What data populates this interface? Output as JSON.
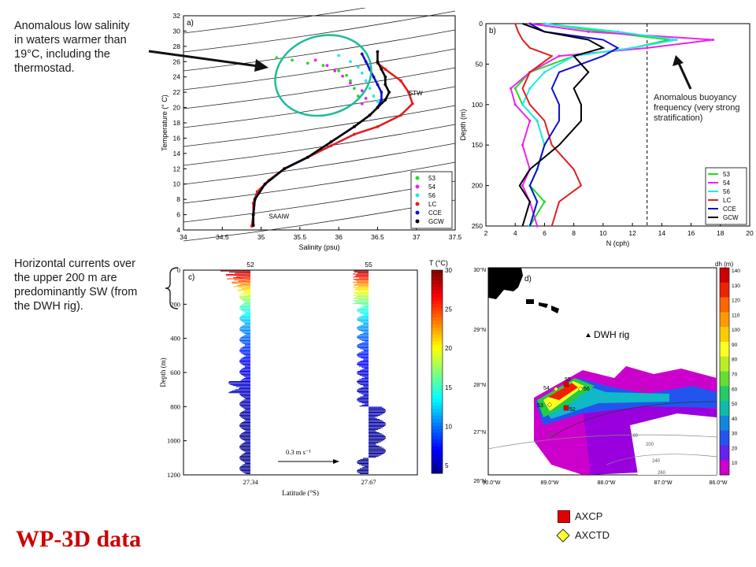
{
  "annotations": {
    "low_salinity": "Anomalous low salinity in waters warmer than 19°C, including the thermostad.",
    "buoyancy": "Anomalous buoyancy frequency (very strong stratification)",
    "currents": "Horizontal currents over the upper 200 m are predominantly SW (from the DWH rig).",
    "footer_title": "WP-3D data"
  },
  "legend_bottom": {
    "axcp": "AXCP",
    "axctd": "AXCTD",
    "axcp_color": "#e00000",
    "axctd_color": "#ffff33"
  },
  "series_colors": {
    "53": "#22dd22",
    "54": "#ee22ee",
    "56": "#22e8e8",
    "LC": "#e02020",
    "CCE": "#1010cc",
    "GCW": "#000000"
  },
  "chart_data": [
    {
      "type": "scatter",
      "panel": "a)",
      "xlabel": "Salinity (psu)",
      "ylabel": "Temperature (° C)",
      "xlim": [
        34,
        37.5
      ],
      "ylim": [
        4,
        32
      ],
      "xticks": [
        "34",
        "34.5",
        "35",
        "35.5",
        "36",
        "36.5",
        "37",
        "37.5"
      ],
      "yticks": [
        "4",
        "6",
        "8",
        "10",
        "12",
        "14",
        "16",
        "18",
        "20",
        "22",
        "24",
        "26",
        "28",
        "30",
        "32"
      ],
      "water_mass_labels": [
        "STW",
        "SAAIW"
      ],
      "legend": [
        "53",
        "54",
        "56",
        "LC",
        "CCE",
        "GCW"
      ],
      "series": [
        {
          "name": "53",
          "points": [
            [
              35.2,
              26.5
            ],
            [
              35.4,
              26.2
            ],
            [
              35.6,
              25.8
            ],
            [
              35.8,
              25.5
            ],
            [
              36.0,
              24.8
            ],
            [
              36.1,
              24.2
            ],
            [
              36.15,
              23.5
            ],
            [
              36.2,
              22.5
            ],
            [
              36.25,
              21.5
            ]
          ]
        },
        {
          "name": "54",
          "points": [
            [
              35.7,
              26.2
            ],
            [
              35.85,
              25.5
            ],
            [
              35.95,
              24.8
            ],
            [
              36.05,
              24.1
            ],
            [
              36.15,
              23.2
            ],
            [
              36.3,
              22.2
            ],
            [
              36.35,
              21.2
            ],
            [
              36.3,
              20.5
            ]
          ]
        },
        {
          "name": "56",
          "points": [
            [
              36.0,
              26.8
            ],
            [
              36.15,
              26
            ],
            [
              36.25,
              25.3
            ],
            [
              36.3,
              24.5
            ],
            [
              36.35,
              23.5
            ],
            [
              36.4,
              22.5
            ],
            [
              36.45,
              21.5
            ],
            [
              36.5,
              20.8
            ]
          ]
        },
        {
          "name": "LC",
          "points": [
            [
              36.5,
              25.8
            ],
            [
              36.6,
              25
            ],
            [
              36.8,
              23.5
            ],
            [
              36.9,
              22
            ],
            [
              36.95,
              20.5
            ],
            [
              36.8,
              19
            ],
            [
              36.5,
              17.5
            ],
            [
              36.2,
              16.5
            ],
            [
              35.9,
              15
            ],
            [
              35.6,
              13.5
            ],
            [
              35.3,
              12
            ],
            [
              35.1,
              10.5
            ],
            [
              34.95,
              9
            ],
            [
              34.9,
              7.5
            ],
            [
              34.9,
              6
            ],
            [
              34.88,
              4.5
            ]
          ]
        },
        {
          "name": "CCE",
          "points": [
            [
              36.3,
              27
            ],
            [
              36.35,
              26
            ],
            [
              36.4,
              25
            ],
            [
              36.45,
              24
            ],
            [
              36.5,
              23
            ],
            [
              36.55,
              22
            ],
            [
              36.55,
              21
            ],
            [
              36.5,
              20
            ],
            [
              36.4,
              19
            ],
            [
              36.2,
              17.5
            ],
            [
              35.9,
              15.5
            ],
            [
              35.6,
              13.5
            ],
            [
              35.3,
              12
            ],
            [
              35.05,
              10
            ],
            [
              34.92,
              8
            ],
            [
              34.9,
              6
            ],
            [
              34.9,
              4.6
            ]
          ]
        },
        {
          "name": "GCW",
          "points": [
            [
              36.5,
              27.3
            ],
            [
              36.5,
              26
            ],
            [
              36.55,
              25
            ],
            [
              36.6,
              24
            ],
            [
              36.6,
              23
            ],
            [
              36.65,
              22
            ],
            [
              36.6,
              21
            ],
            [
              36.5,
              20
            ],
            [
              36.4,
              19
            ],
            [
              36.2,
              17.5
            ],
            [
              35.9,
              15.5
            ],
            [
              35.6,
              13.5
            ],
            [
              35.3,
              12
            ],
            [
              35.05,
              10
            ],
            [
              34.92,
              8
            ],
            [
              34.9,
              6
            ],
            [
              34.9,
              4.6
            ]
          ]
        }
      ]
    },
    {
      "type": "line",
      "panel": "b)",
      "xlabel": "N (cph)",
      "ylabel": "Depth (m)",
      "xlim": [
        2,
        20
      ],
      "ylim": [
        250,
        0
      ],
      "xticks": [
        "2",
        "4",
        "6",
        "8",
        "10",
        "12",
        "14",
        "16",
        "18",
        "20"
      ],
      "yticks": [
        "0",
        "50",
        "100",
        "150",
        "200",
        "250"
      ],
      "legend": [
        "53",
        "54",
        "56",
        "LC",
        "CCE",
        "GCW"
      ],
      "series": [
        {
          "name": "53",
          "depth": [
            0,
            10,
            20,
            30,
            40,
            60,
            80,
            100,
            120,
            150,
            180,
            200,
            220,
            250
          ],
          "N": [
            6,
            10,
            14.5,
            12,
            8,
            5,
            4,
            4.5,
            5.5,
            6,
            5.5,
            5,
            6,
            5
          ]
        },
        {
          "name": "54",
          "depth": [
            0,
            10,
            20,
            30,
            40,
            60,
            80,
            100,
            120,
            150,
            180,
            200,
            220,
            250
          ],
          "N": [
            5,
            9,
            17.5,
            13,
            7,
            5,
            3.7,
            4,
            5,
            4.5,
            5,
            4.5,
            5,
            5.5
          ]
        },
        {
          "name": "56",
          "depth": [
            0,
            10,
            20,
            30,
            40,
            60,
            80,
            100,
            120,
            150,
            180,
            200,
            220,
            250
          ],
          "N": [
            6,
            11,
            15,
            12,
            8,
            6,
            5,
            4.5,
            5.5,
            6,
            5.5,
            5,
            5.5,
            5
          ]
        },
        {
          "name": "LC",
          "depth": [
            0,
            10,
            20,
            30,
            40,
            60,
            80,
            100,
            120,
            150,
            180,
            200,
            220,
            250
          ],
          "N": [
            4,
            4.2,
            4.5,
            5,
            6.5,
            5,
            4.5,
            5,
            6,
            6.5,
            8,
            8.5,
            7,
            6.5
          ]
        },
        {
          "name": "CCE",
          "depth": [
            0,
            10,
            20,
            30,
            40,
            60,
            80,
            100,
            120,
            150,
            180,
            200,
            220,
            250
          ],
          "N": [
            5,
            6,
            10,
            11,
            10,
            7,
            6.5,
            7,
            7,
            6,
            5.5,
            5,
            5.5,
            5
          ]
        },
        {
          "name": "GCW",
          "depth": [
            0,
            10,
            20,
            30,
            40,
            60,
            80,
            100,
            120,
            150,
            180,
            200,
            220,
            250
          ],
          "N": [
            4.5,
            6,
            9,
            10,
            8,
            9,
            8,
            8.5,
            8.5,
            7,
            5,
            4.3,
            5,
            4.5
          ]
        }
      ],
      "reference_line_N": 13
    },
    {
      "type": "vector",
      "panel": "c)",
      "xlabel": "Latitude (°S)",
      "ylabel": "Depth (m)",
      "ylim": [
        1200,
        0
      ],
      "yticks": [
        "0",
        "200",
        "400",
        "600",
        "800",
        "1000",
        "1200"
      ],
      "profiles": [
        "52",
        "55"
      ],
      "profile_latitudes": [
        "27.34",
        "27.67"
      ],
      "scale_label": "0.3 m s⁻¹",
      "colorbar_title": "T (°C)",
      "colorbar_ticks": [
        "30",
        "25",
        "20",
        "15",
        "10",
        "5"
      ],
      "colorbar_range": [
        4,
        30
      ]
    },
    {
      "type": "heatmap",
      "panel": "d)",
      "colorbar_title": "dh (m)",
      "colorbar_ticks": [
        "140",
        "130",
        "120",
        "110",
        "100",
        "90",
        "80",
        "70",
        "60",
        "50",
        "40",
        "30",
        "20",
        "10"
      ],
      "colorbar_range": [
        0,
        140
      ],
      "lat_labels": [
        "30°N",
        "29°N",
        "28°N",
        "27°N",
        "26°N"
      ],
      "lon_labels": [
        "90.0°W",
        "89.0°W",
        "88.0°W",
        "87.0°W",
        "86.0°W"
      ],
      "marker_label": "DWH rig",
      "stations": [
        "55",
        "54",
        "56",
        "53",
        "52"
      ],
      "contour_labels": [
        "80",
        "100",
        "160",
        "200",
        "240",
        "260"
      ]
    }
  ]
}
